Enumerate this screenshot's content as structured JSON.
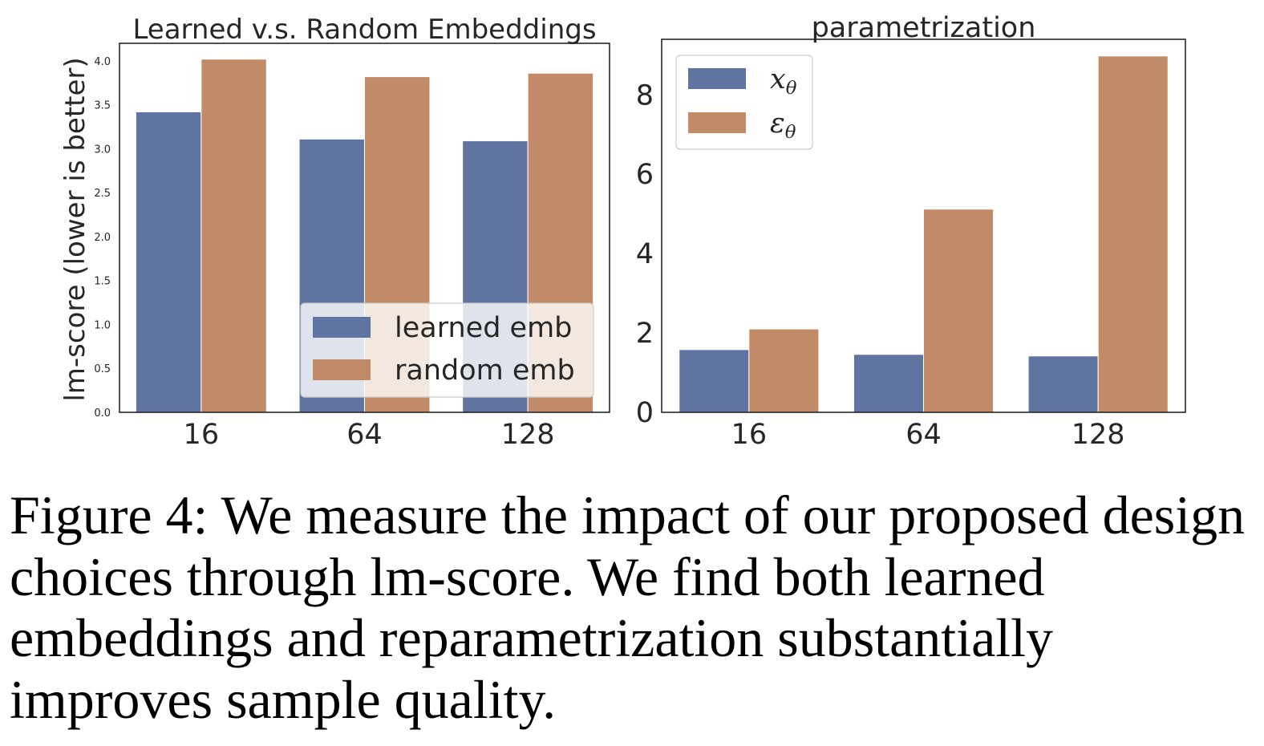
{
  "chart_data": [
    {
      "type": "bar",
      "title": "Learned v.s. Random Embeddings",
      "xlabel": "",
      "ylabel": "lm-score (lower is better)",
      "categories": [
        "16",
        "64",
        "128"
      ],
      "series": [
        {
          "name": "learned emb",
          "values": [
            3.42,
            3.11,
            3.09
          ],
          "color": "#6074a1"
        },
        {
          "name": "random emb",
          "values": [
            4.02,
            3.82,
            3.86
          ],
          "color": "#c08b66"
        }
      ],
      "ylim": [
        0,
        4.2
      ],
      "yticks": [
        "0.0",
        "0.5",
        "1.0",
        "1.5",
        "2.0",
        "2.5",
        "3.0",
        "3.5",
        "4.0"
      ],
      "legend_position": "lower-right",
      "grid": false
    },
    {
      "type": "bar",
      "title": "parametrization",
      "xlabel": "",
      "ylabel": "",
      "categories": [
        "16",
        "64",
        "128"
      ],
      "series": [
        {
          "name": "xθ",
          "values": [
            1.58,
            1.46,
            1.42
          ],
          "color": "#6074a1"
        },
        {
          "name": "εθ",
          "values": [
            2.1,
            5.12,
            8.98
          ],
          "color": "#c08b66"
        }
      ],
      "ylim": [
        0,
        9.4
      ],
      "yticks": [
        "0",
        "2",
        "4",
        "6",
        "8"
      ],
      "legend_position": "upper-left",
      "grid": false
    }
  ],
  "caption": {
    "label": "Figure 4:",
    "text": "We measure the impact of our proposed design choices through lm-score. We find both learned embeddings and reparametrization substantially improves sample quality."
  }
}
